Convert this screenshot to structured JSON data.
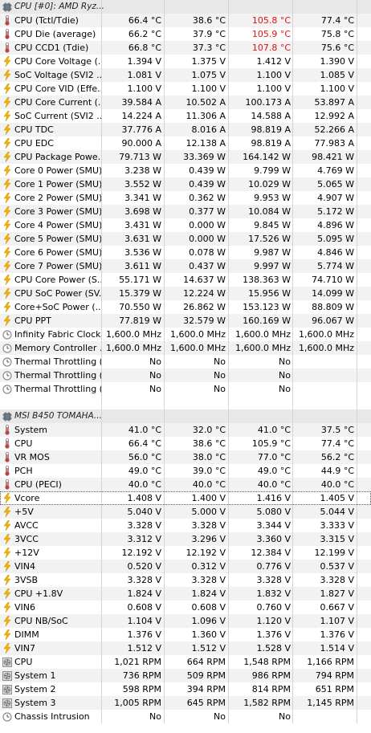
{
  "sections": [
    {
      "title": "CPU [#0]: AMD Ryz...",
      "rows": [
        {
          "icon": "thermometer",
          "label": "CPU (Tctl/Tdie)",
          "values": [
            "66.4 °C",
            "38.6 °C",
            "105.8 °C",
            "77.4 °C"
          ],
          "red": [
            2
          ]
        },
        {
          "icon": "thermometer",
          "label": "CPU Die (average)",
          "values": [
            "66.2 °C",
            "37.9 °C",
            "105.9 °C",
            "75.8 °C"
          ],
          "red": [
            2
          ]
        },
        {
          "icon": "thermometer",
          "label": "CPU CCD1 (Tdie)",
          "values": [
            "66.8 °C",
            "37.3 °C",
            "107.8 °C",
            "75.6 °C"
          ],
          "red": [
            2
          ]
        },
        {
          "icon": "bolt",
          "label": "CPU Core Voltage (...",
          "values": [
            "1.394 V",
            "1.375 V",
            "1.412 V",
            "1.390 V"
          ]
        },
        {
          "icon": "bolt",
          "label": "SoC Voltage (SVI2 ...",
          "values": [
            "1.081 V",
            "1.075 V",
            "1.100 V",
            "1.085 V"
          ]
        },
        {
          "icon": "bolt",
          "label": "CPU Core VID (Effe...",
          "values": [
            "1.100 V",
            "1.100 V",
            "1.100 V",
            "1.100 V"
          ]
        },
        {
          "icon": "bolt",
          "label": "CPU Core Current (...",
          "values": [
            "39.584 A",
            "10.502 A",
            "100.173 A",
            "53.897 A"
          ]
        },
        {
          "icon": "bolt",
          "label": "SoC Current (SVI2 ...",
          "values": [
            "14.224 A",
            "11.306 A",
            "14.588 A",
            "12.992 A"
          ]
        },
        {
          "icon": "bolt",
          "label": "CPU TDC",
          "values": [
            "37.776 A",
            "8.016 A",
            "98.819 A",
            "52.266 A"
          ]
        },
        {
          "icon": "bolt",
          "label": "CPU EDC",
          "values": [
            "90.000 A",
            "12.138 A",
            "98.819 A",
            "77.983 A"
          ]
        },
        {
          "icon": "bolt",
          "label": "CPU Package Powe...",
          "values": [
            "79.713 W",
            "33.369 W",
            "164.142 W",
            "98.421 W"
          ]
        },
        {
          "icon": "bolt",
          "label": "Core 0 Power (SMU)",
          "values": [
            "3.238 W",
            "0.439 W",
            "9.799 W",
            "4.769 W"
          ]
        },
        {
          "icon": "bolt",
          "label": "Core 1 Power (SMU)",
          "values": [
            "3.552 W",
            "0.439 W",
            "10.029 W",
            "5.065 W"
          ]
        },
        {
          "icon": "bolt",
          "label": "Core 2 Power (SMU)",
          "values": [
            "3.341 W",
            "0.362 W",
            "9.953 W",
            "4.907 W"
          ]
        },
        {
          "icon": "bolt",
          "label": "Core 3 Power (SMU)",
          "values": [
            "3.698 W",
            "0.377 W",
            "10.084 W",
            "5.172 W"
          ]
        },
        {
          "icon": "bolt",
          "label": "Core 4 Power (SMU)",
          "values": [
            "3.431 W",
            "0.000 W",
            "9.845 W",
            "4.896 W"
          ]
        },
        {
          "icon": "bolt",
          "label": "Core 5 Power (SMU)",
          "values": [
            "3.631 W",
            "0.000 W",
            "17.526 W",
            "5.095 W"
          ]
        },
        {
          "icon": "bolt",
          "label": "Core 6 Power (SMU)",
          "values": [
            "3.536 W",
            "0.078 W",
            "9.987 W",
            "4.846 W"
          ]
        },
        {
          "icon": "bolt",
          "label": "Core 7 Power (SMU)",
          "values": [
            "3.611 W",
            "0.437 W",
            "9.997 W",
            "5.774 W"
          ]
        },
        {
          "icon": "bolt",
          "label": "CPU Core Power (S...",
          "values": [
            "55.171 W",
            "14.637 W",
            "138.363 W",
            "74.710 W"
          ]
        },
        {
          "icon": "bolt",
          "label": "CPU SoC Power (SV...",
          "values": [
            "15.379 W",
            "12.224 W",
            "15.956 W",
            "14.099 W"
          ]
        },
        {
          "icon": "bolt",
          "label": "Core+SoC Power (...",
          "values": [
            "70.550 W",
            "26.862 W",
            "153.123 W",
            "88.809 W"
          ]
        },
        {
          "icon": "bolt",
          "label": "CPU PPT",
          "values": [
            "77.819 W",
            "32.579 W",
            "160.169 W",
            "96.067 W"
          ]
        },
        {
          "icon": "clock",
          "label": "Infinity Fabric Clock...",
          "values": [
            "1,600.0 MHz",
            "1,600.0 MHz",
            "1,600.0 MHz",
            "1,600.0 MHz"
          ]
        },
        {
          "icon": "clock",
          "label": "Memory Controller ...",
          "values": [
            "1,600.0 MHz",
            "1,600.0 MHz",
            "1,600.0 MHz",
            "1,600.0 MHz"
          ]
        },
        {
          "icon": "clock",
          "label": "Thermal Throttling (...",
          "values": [
            "No",
            "No",
            "No",
            ""
          ]
        },
        {
          "icon": "clock",
          "label": "Thermal Throttling (...",
          "values": [
            "No",
            "No",
            "No",
            ""
          ]
        },
        {
          "icon": "clock",
          "label": "Thermal Throttling (...",
          "values": [
            "No",
            "No",
            "No",
            ""
          ]
        }
      ]
    },
    {
      "title": "MSI B450 TOMAHA...",
      "rows": [
        {
          "icon": "thermometer",
          "label": "System",
          "values": [
            "41.0 °C",
            "32.0 °C",
            "41.0 °C",
            "37.5 °C"
          ]
        },
        {
          "icon": "thermometer",
          "label": "CPU",
          "values": [
            "66.4 °C",
            "38.6 °C",
            "105.9 °C",
            "77.4 °C"
          ]
        },
        {
          "icon": "thermometer",
          "label": "VR MOS",
          "values": [
            "56.0 °C",
            "38.0 °C",
            "77.0 °C",
            "56.2 °C"
          ]
        },
        {
          "icon": "thermometer",
          "label": "PCH",
          "values": [
            "49.0 °C",
            "39.0 °C",
            "49.0 °C",
            "44.9 °C"
          ]
        },
        {
          "icon": "thermometer",
          "label": "CPU (PECI)",
          "values": [
            "40.0 °C",
            "40.0 °C",
            "40.0 °C",
            "40.0 °C"
          ]
        },
        {
          "icon": "bolt",
          "label": "Vcore",
          "values": [
            "1.408 V",
            "1.400 V",
            "1.416 V",
            "1.405 V"
          ],
          "focus": true
        },
        {
          "icon": "bolt",
          "label": "+5V",
          "values": [
            "5.040 V",
            "5.000 V",
            "5.080 V",
            "5.044 V"
          ]
        },
        {
          "icon": "bolt",
          "label": "AVCC",
          "values": [
            "3.328 V",
            "3.328 V",
            "3.344 V",
            "3.333 V"
          ]
        },
        {
          "icon": "bolt",
          "label": "3VCC",
          "values": [
            "3.312 V",
            "3.296 V",
            "3.360 V",
            "3.315 V"
          ]
        },
        {
          "icon": "bolt",
          "label": "+12V",
          "values": [
            "12.192 V",
            "12.192 V",
            "12.384 V",
            "12.199 V"
          ]
        },
        {
          "icon": "bolt",
          "label": "VIN4",
          "values": [
            "0.520 V",
            "0.312 V",
            "0.776 V",
            "0.537 V"
          ]
        },
        {
          "icon": "bolt",
          "label": "3VSB",
          "values": [
            "3.328 V",
            "3.328 V",
            "3.328 V",
            "3.328 V"
          ]
        },
        {
          "icon": "bolt",
          "label": "CPU +1.8V",
          "values": [
            "1.824 V",
            "1.824 V",
            "1.832 V",
            "1.827 V"
          ]
        },
        {
          "icon": "bolt",
          "label": "VIN6",
          "values": [
            "0.608 V",
            "0.608 V",
            "0.760 V",
            "0.667 V"
          ]
        },
        {
          "icon": "bolt",
          "label": "CPU NB/SoC",
          "values": [
            "1.104 V",
            "1.096 V",
            "1.120 V",
            "1.107 V"
          ]
        },
        {
          "icon": "bolt",
          "label": "DIMM",
          "values": [
            "1.376 V",
            "1.360 V",
            "1.376 V",
            "1.376 V"
          ]
        },
        {
          "icon": "bolt",
          "label": "VIN7",
          "values": [
            "1.512 V",
            "1.512 V",
            "1.528 V",
            "1.514 V"
          ]
        },
        {
          "icon": "fan",
          "label": "CPU",
          "values": [
            "1,021 RPM",
            "664 RPM",
            "1,548 RPM",
            "1,166 RPM"
          ]
        },
        {
          "icon": "fan",
          "label": "System 1",
          "values": [
            "736 RPM",
            "509 RPM",
            "986 RPM",
            "794 RPM"
          ]
        },
        {
          "icon": "fan",
          "label": "System 2",
          "values": [
            "598 RPM",
            "394 RPM",
            "814 RPM",
            "651 RPM"
          ]
        },
        {
          "icon": "fan",
          "label": "System 3",
          "values": [
            "1,005 RPM",
            "645 RPM",
            "1,582 RPM",
            "1,145 RPM"
          ]
        },
        {
          "icon": "clock",
          "label": "Chassis Intrusion",
          "values": [
            "No",
            "No",
            "No",
            ""
          ]
        }
      ]
    }
  ],
  "colors": {
    "alert_red": "#e01010",
    "bolt": "#f2b600",
    "thermo_red": "#d43c2c",
    "gray_icon": "#8a8a8a"
  }
}
